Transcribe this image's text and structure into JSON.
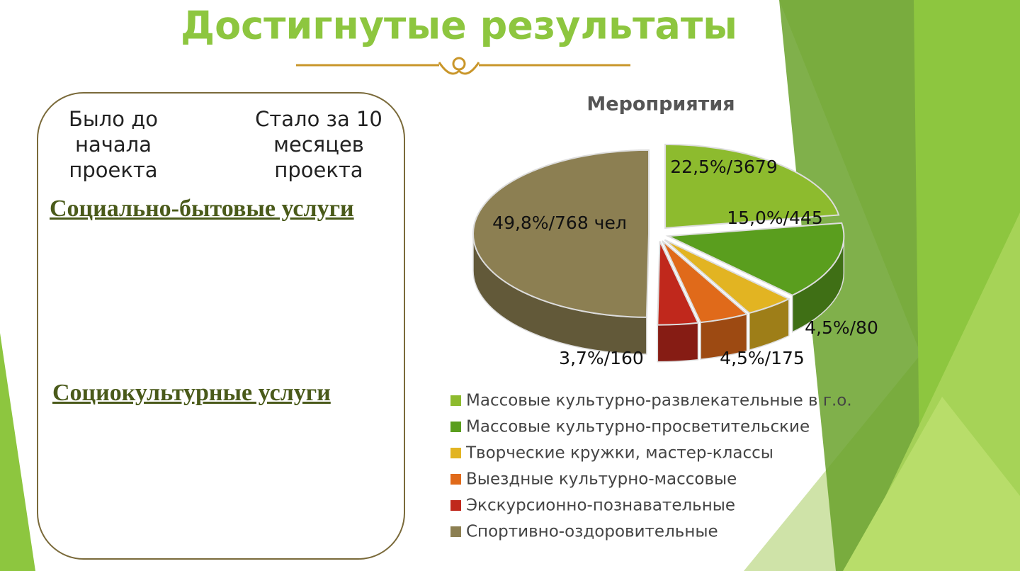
{
  "slide": {
    "title": "Достигнутые результаты",
    "columns": [
      "Было до начала проекта",
      "Стало за 10 месяцев проекта"
    ],
    "sections": [
      "Социально-бытовые услуги",
      "Социокультурные услуги"
    ]
  },
  "chart_data": {
    "type": "pie",
    "title": "Мероприятия",
    "categories": [
      "Массовые культурно-развлекательные в г.о.",
      "Массовые культурно-просветительские",
      "Творческие кружки, мастер-классы",
      "Выездные культурно-массовые",
      "Экскурсионно-познавательные",
      "Спортивно-оздоровительные"
    ],
    "values": [
      22.5,
      15.0,
      4.5,
      4.5,
      3.7,
      49.8
    ],
    "value_labels": [
      "22,5%/3679",
      "15,0%/445",
      "4,5%/80",
      "4,5%/175",
      "3,7%/160",
      "49,8%/768 чел"
    ],
    "colors": [
      "#8dbb2e",
      "#5a9e1e",
      "#e2b422",
      "#e06a1a",
      "#c0281c",
      "#8c7f52"
    ],
    "legend": "bottom"
  }
}
